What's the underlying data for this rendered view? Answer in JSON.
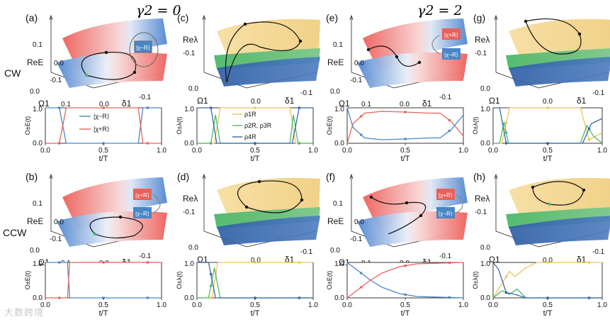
{
  "figure": {
    "headers": {
      "left": "γ2 = 0",
      "right": "γ2 = 2"
    },
    "row_labels": {
      "top": "CW",
      "bottom": "CCW"
    },
    "panel_labels": [
      "(a)",
      "(b)",
      "(c)",
      "(d)",
      "(e)",
      "(f)",
      "(g)",
      "(h)"
    ],
    "axis_text": {
      "reE": "ReE",
      "relambda": "Reλ",
      "omega": "Ω1",
      "delta": "δ1",
      "tT": "t/T",
      "ticks_z_energy": [
        "0.1",
        "0.0",
        "-0.1"
      ],
      "ticks_z_lambda": [
        "-0.1"
      ],
      "ticks_omega": [
        "0.0",
        "0.1"
      ],
      "ticks_delta": [
        "0.0",
        "-0.1"
      ],
      "ticks_x": [
        "0.0",
        "0.5",
        "1.0"
      ],
      "ticks_y": [
        "0.0",
        "1.0"
      ],
      "ylabel_energy": "O±E(t)",
      "ylabel_lambda": "O±λ(t)"
    },
    "legends": {
      "state_minus": "|χ−R⟩",
      "state_plus": "|χ+R⟩",
      "rho1": "ρ1R",
      "rho23": "ρ2R, ρ3R",
      "rho4": "ρ4R"
    },
    "watermark": "大数跨境"
  },
  "colors": {
    "blue": "#4a86c6",
    "red": "#e8615a",
    "yellow": "#f2d488",
    "green": "#4cb866",
    "navy": "#3a66a8"
  },
  "chart_data": [
    {
      "type": "line",
      "panel": "(a) lower",
      "xlabel": "t/T",
      "ylabel": "O±E(t)",
      "ylim": [
        0,
        1
      ],
      "series": [
        {
          "name": "|χ−R⟩",
          "x": [
            0,
            0.12,
            0.18,
            0.8,
            0.84,
            1.0
          ],
          "values": [
            1,
            1,
            0,
            0,
            1,
            1
          ]
        },
        {
          "name": "|χ+R⟩",
          "x": [
            0,
            0.12,
            0.18,
            0.8,
            0.84,
            1.0
          ],
          "values": [
            0,
            0,
            1,
            1,
            0,
            0
          ]
        }
      ]
    },
    {
      "type": "line",
      "panel": "(b) lower",
      "xlabel": "t/T",
      "ylim": [
        0,
        1
      ],
      "series": [
        {
          "name": "|χ−R⟩",
          "x": [
            0,
            0.19,
            0.21,
            1.0
          ],
          "values": [
            1,
            1,
            0,
            0
          ]
        },
        {
          "name": "|χ+R⟩",
          "x": [
            0,
            0.19,
            0.21,
            1.0
          ],
          "values": [
            0,
            0,
            1,
            1
          ]
        }
      ]
    },
    {
      "type": "line",
      "panel": "(c) lower",
      "xlabel": "t/T",
      "ylim": [
        0,
        1
      ],
      "series": [
        {
          "name": "ρ1R",
          "x": [
            0,
            0.15,
            0.2,
            0.8,
            0.85,
            1.0
          ],
          "values": [
            0,
            0,
            1,
            1,
            0,
            0
          ]
        },
        {
          "name": "ρ2R, ρ3R",
          "x": [
            0,
            0.12,
            0.16,
            0.2,
            0.8,
            0.83,
            0.87,
            1.0
          ],
          "values": [
            0,
            0,
            0.8,
            0,
            0,
            0.8,
            0,
            0
          ]
        },
        {
          "name": "ρ4R",
          "x": [
            0,
            0.12,
            0.17,
            0.82,
            0.88,
            1.0
          ],
          "values": [
            1,
            1,
            0,
            0,
            1,
            1
          ]
        }
      ]
    },
    {
      "type": "line",
      "panel": "(d) lower",
      "xlabel": "t/T",
      "ylim": [
        0,
        1
      ],
      "series": [
        {
          "name": "ρ1R",
          "x": [
            0,
            0.13,
            0.18,
            1.0
          ],
          "values": [
            0,
            0,
            1,
            1
          ]
        },
        {
          "name": "ρ2R, ρ3R",
          "x": [
            0,
            0.1,
            0.15,
            0.2,
            1.0
          ],
          "values": [
            0,
            0,
            0.85,
            0,
            0
          ]
        },
        {
          "name": "ρ4R",
          "x": [
            0,
            0.1,
            0.16,
            1.0
          ],
          "values": [
            1,
            1,
            0,
            0
          ]
        }
      ]
    },
    {
      "type": "line",
      "panel": "(e) lower",
      "xlabel": "t/T",
      "ylim": [
        0,
        1
      ],
      "series": [
        {
          "name": "|χ+R⟩",
          "x": [
            0,
            0.05,
            0.15,
            0.3,
            0.5,
            0.7,
            0.8,
            0.9,
            1.0
          ],
          "values": [
            0,
            0.55,
            0.85,
            0.9,
            0.88,
            0.85,
            0.85,
            0.6,
            0.2
          ]
        },
        {
          "name": "|χ−R⟩",
          "x": [
            0,
            0.05,
            0.15,
            0.3,
            0.5,
            0.7,
            0.8,
            0.9,
            1.0
          ],
          "values": [
            1,
            0.45,
            0.15,
            0.1,
            0.12,
            0.15,
            0.15,
            0.4,
            0.8
          ]
        }
      ]
    },
    {
      "type": "line",
      "panel": "(f) lower",
      "xlabel": "t/T",
      "ylim": [
        0,
        1
      ],
      "series": [
        {
          "name": "|χ−R⟩",
          "x": [
            0,
            0.1,
            0.2,
            0.3,
            0.45,
            0.6,
            1.0
          ],
          "values": [
            1,
            0.75,
            0.5,
            0.3,
            0.12,
            0.04,
            0
          ]
        },
        {
          "name": "|χ+R⟩",
          "x": [
            0,
            0.1,
            0.2,
            0.3,
            0.45,
            0.6,
            1.0
          ],
          "values": [
            0,
            0.25,
            0.5,
            0.7,
            0.88,
            0.96,
            1
          ]
        }
      ]
    },
    {
      "type": "line",
      "panel": "(g) lower",
      "xlabel": "t/T",
      "ylim": [
        0,
        1
      ],
      "series": [
        {
          "name": "ρ1R",
          "x": [
            0,
            0.08,
            0.15,
            0.8,
            0.88,
            1.0
          ],
          "values": [
            0,
            0,
            1,
            1,
            0.1,
            0.3
          ]
        },
        {
          "name": "ρ2R, ρ3R",
          "x": [
            0,
            0.06,
            0.1,
            0.14,
            0.8,
            0.86,
            0.92,
            1.0
          ],
          "values": [
            0,
            0,
            0.6,
            0,
            0,
            0.5,
            0.2,
            0
          ]
        },
        {
          "name": "ρ4R",
          "x": [
            0,
            0.06,
            0.12,
            0.82,
            0.9,
            1.0
          ],
          "values": [
            1,
            1,
            0,
            0,
            0.55,
            0.7
          ]
        }
      ]
    },
    {
      "type": "line",
      "panel": "(h) lower",
      "xlabel": "t/T",
      "ylim": [
        0,
        1
      ],
      "series": [
        {
          "name": "ρ1R",
          "x": [
            0,
            0.1,
            0.15,
            0.2,
            0.3,
            0.4,
            1.0
          ],
          "values": [
            0,
            0.5,
            0.75,
            0.6,
            0.85,
            1,
            1
          ]
        },
        {
          "name": "ρ2R, ρ3R",
          "x": [
            0,
            0.08,
            0.15,
            0.22,
            0.3,
            1.0
          ],
          "values": [
            0,
            0.2,
            0.1,
            0.25,
            0,
            0
          ]
        },
        {
          "name": "ρ4R",
          "x": [
            0,
            0.05,
            0.12,
            0.2,
            0.3,
            1.0
          ],
          "values": [
            1,
            0.8,
            0.15,
            0.1,
            0,
            0
          ]
        }
      ]
    }
  ]
}
